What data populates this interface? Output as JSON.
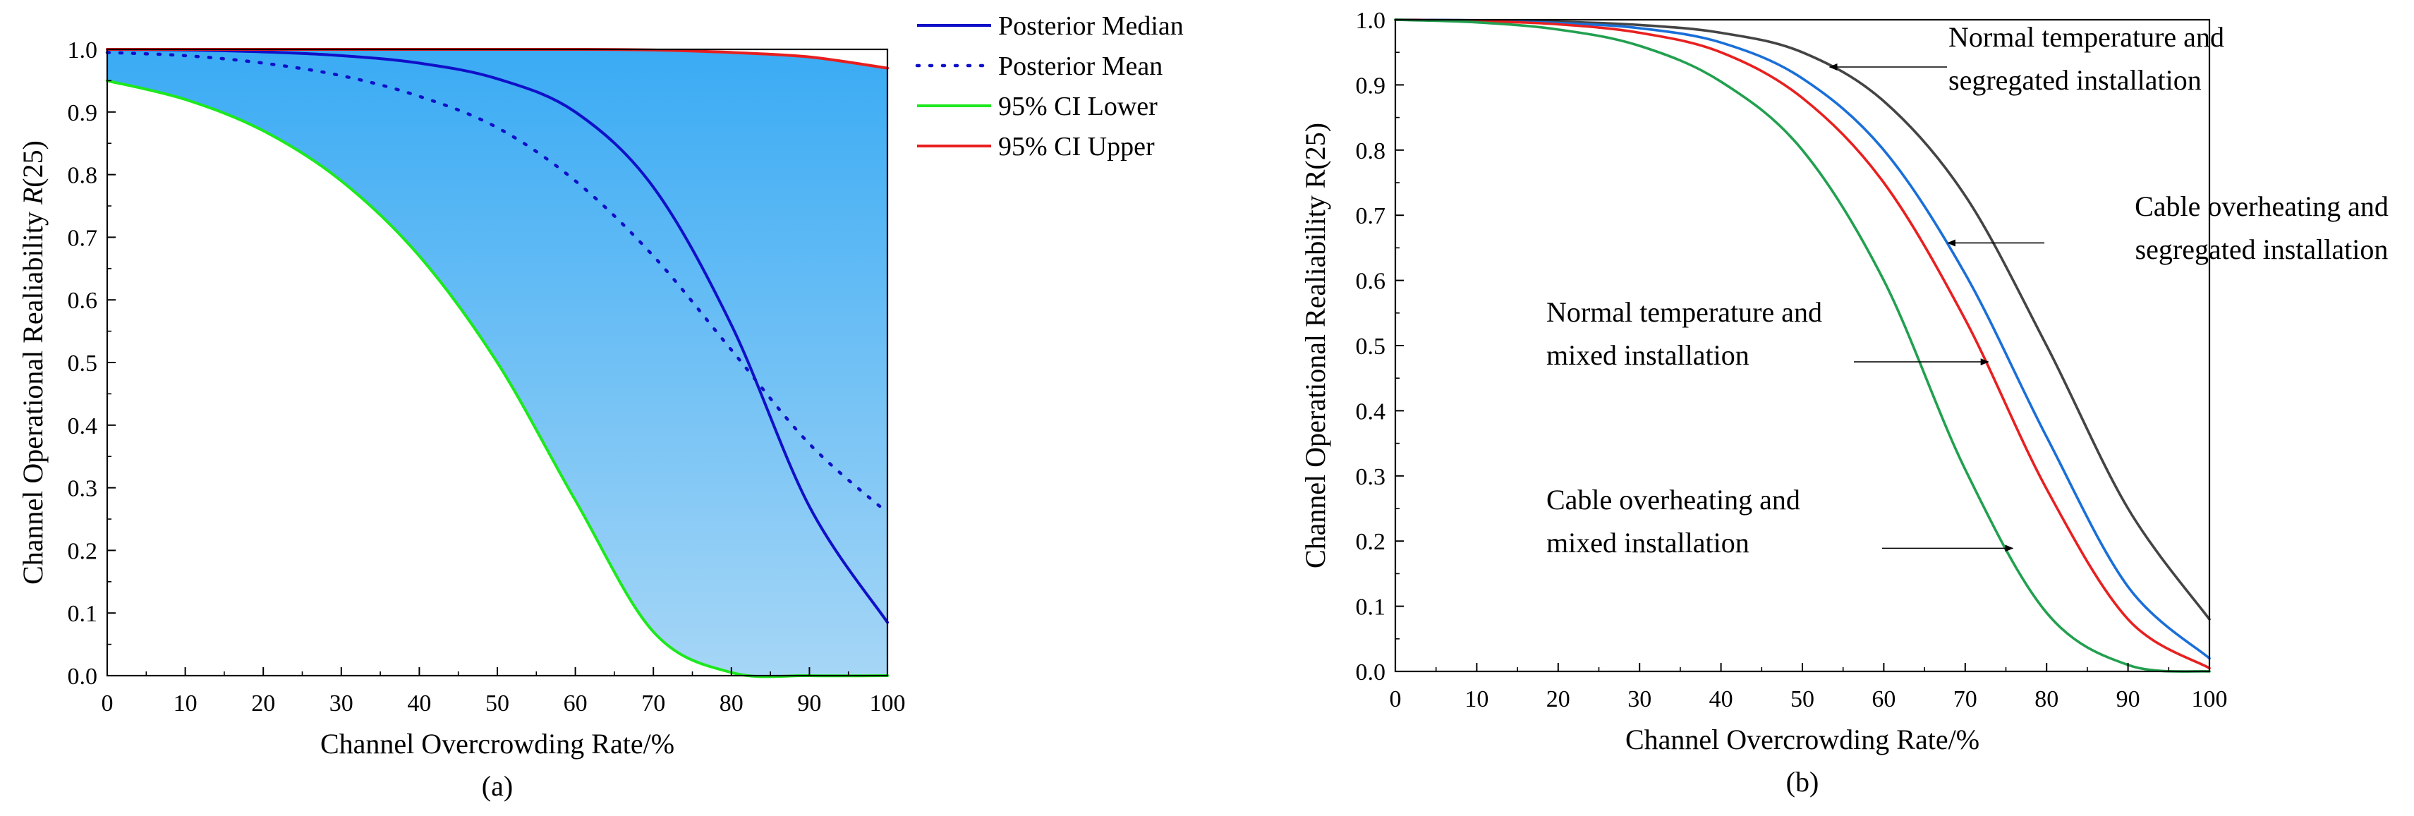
{
  "chart_data": [
    {
      "type": "line",
      "panel_label": "(a)",
      "xlabel": "Channel Overcrowding Rate/%",
      "ylabel_prefix": "Channel Operational Realiability ",
      "ylabel_italic": "R",
      "ylabel_suffix": "(25)",
      "xlim": [
        0,
        100
      ],
      "ylim": [
        0,
        1.0
      ],
      "x_ticks": [
        0,
        10,
        20,
        30,
        40,
        50,
        60,
        70,
        80,
        90,
        100
      ],
      "x_tick_labels": [
        "0",
        "10",
        "20",
        "30",
        "40",
        "50",
        "60",
        "70",
        "80",
        "90",
        "100"
      ],
      "y_ticks": [
        0,
        0.1,
        0.2,
        0.3,
        0.4,
        0.5,
        0.6,
        0.7,
        0.8,
        0.9,
        1.0
      ],
      "y_tick_labels": [
        "0.0",
        "0.1",
        "0.2",
        "0.3",
        "0.4",
        "0.5",
        "0.6",
        "0.7",
        "0.8",
        "0.9",
        "1.0"
      ],
      "x": [
        0,
        10,
        20,
        30,
        40,
        50,
        60,
        70,
        80,
        90,
        100
      ],
      "legend_position": "outside-right",
      "band": {
        "between": [
          "95% CI Lower",
          "95% CI Upper"
        ],
        "color_top": "#3aabf4",
        "color_bottom": "#a6d6f6"
      },
      "series": [
        {
          "name": "Posterior Median",
          "color": "#1010c8",
          "style": "solid",
          "values": [
            1.0,
            0.999,
            0.996,
            0.99,
            0.978,
            0.953,
            0.9,
            0.78,
            0.56,
            0.27,
            0.085
          ]
        },
        {
          "name": "Posterior Mean",
          "color": "#1010c8",
          "style": "dotted",
          "values": [
            0.995,
            0.99,
            0.978,
            0.958,
            0.925,
            0.875,
            0.79,
            0.67,
            0.52,
            0.37,
            0.26
          ]
        },
        {
          "name": "95% CI Lower",
          "color": "#1ee81e",
          "style": "solid",
          "values": [
            0.95,
            0.92,
            0.87,
            0.79,
            0.67,
            0.5,
            0.28,
            0.07,
            0.005,
            0.0,
            0.0
          ]
        },
        {
          "name": "95% CI Upper",
          "color": "#e81e1e",
          "style": "solid",
          "values": [
            1.0,
            1.0,
            1.0,
            1.0,
            1.0,
            1.0,
            1.0,
            0.999,
            0.995,
            0.988,
            0.97
          ]
        }
      ]
    },
    {
      "type": "line",
      "panel_label": "(b)",
      "xlabel": "Channel Overcrowding Rate/%",
      "ylabel": "Channel Operational Realiability R(25)",
      "xlim": [
        0,
        100
      ],
      "ylim": [
        0,
        1.0
      ],
      "x_ticks": [
        0,
        10,
        20,
        30,
        40,
        50,
        60,
        70,
        80,
        90,
        100
      ],
      "x_tick_labels": [
        "0",
        "10",
        "20",
        "30",
        "40",
        "50",
        "60",
        "70",
        "80",
        "90",
        "100"
      ],
      "y_ticks": [
        0,
        0.1,
        0.2,
        0.3,
        0.4,
        0.5,
        0.6,
        0.7,
        0.8,
        0.9,
        1.0
      ],
      "y_tick_labels": [
        "0.0",
        "0.1",
        "0.2",
        "0.3",
        "0.4",
        "0.5",
        "0.6",
        "0.7",
        "0.8",
        "0.9",
        "1.0"
      ],
      "x": [
        0,
        10,
        20,
        30,
        40,
        50,
        60,
        70,
        80,
        90,
        100
      ],
      "series": [
        {
          "name": "Normal temperature and segregated installation",
          "color": "#444444",
          "values": [
            1.0,
            0.999,
            0.997,
            0.992,
            0.98,
            0.95,
            0.875,
            0.73,
            0.5,
            0.25,
            0.08
          ],
          "annotation": {
            "lines": [
              "Normal temperature and",
              "segregated installation"
            ],
            "arrow_x": 53
          }
        },
        {
          "name": "Cable overheating and segregated installation",
          "color": "#1a6fd8",
          "values": [
            1.0,
            0.999,
            0.995,
            0.987,
            0.965,
            0.91,
            0.8,
            0.61,
            0.36,
            0.13,
            0.02
          ],
          "annotation": {
            "lines": [
              "Cable overheating and",
              "segregated installation"
            ],
            "arrow_x": 67.5
          }
        },
        {
          "name": "Normal temperature and mixed installation",
          "color": "#e82020",
          "values": [
            1.0,
            0.998,
            0.993,
            0.98,
            0.95,
            0.88,
            0.75,
            0.54,
            0.28,
            0.08,
            0.005
          ],
          "annotation": {
            "lines": [
              "Normal temperature and",
              "mixed installation"
            ],
            "arrow_x": 72.5
          }
        },
        {
          "name": "Cable overheating and mixed installation",
          "color": "#22a050",
          "values": [
            1.0,
            0.996,
            0.985,
            0.96,
            0.905,
            0.8,
            0.6,
            0.31,
            0.09,
            0.01,
            0.0
          ],
          "annotation": {
            "lines": [
              "Cable overheating and",
              "mixed installation"
            ],
            "arrow_x": 75.5
          }
        }
      ]
    }
  ]
}
